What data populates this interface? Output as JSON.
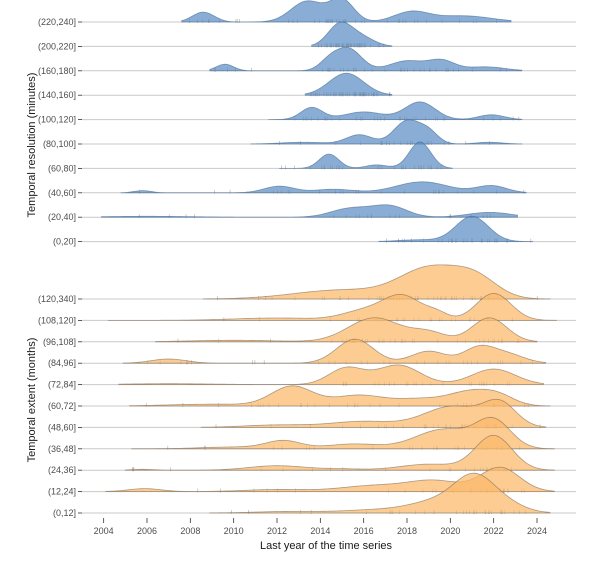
{
  "chart_data": {
    "type": "ridgeline",
    "xlabel": "Last year of the time series",
    "xlim": [
      2003,
      2025.8
    ],
    "xticks": [
      2004,
      2006,
      2008,
      2010,
      2012,
      2014,
      2016,
      2018,
      2020,
      2022,
      2024
    ],
    "panels": [
      {
        "name": "temporal-resolution",
        "ylabel": "Temporal resolution (minutes)",
        "color": "#5b8dc4",
        "rows": [
          {
            "label": "(220,240]",
            "range": [
              2007.6,
              2022.8
            ],
            "peaks": [
              [
                2008.6,
                0.45,
                0.5
              ],
              [
                2013.4,
                0.95,
                0.75
              ],
              [
                2015.0,
                1.0,
                0.55
              ],
              [
                2018.2,
                0.45,
                0.8
              ],
              [
                2020.6,
                0.28,
                1.3
              ]
            ]
          },
          {
            "label": "(200,220]",
            "range": [
              2013.6,
              2017.3
            ],
            "peaks": [
              [
                2014.9,
                1.0,
                0.55
              ],
              [
                2015.9,
                0.4,
                0.6
              ]
            ]
          },
          {
            "label": "(160,180]",
            "range": [
              2008.9,
              2023.3
            ],
            "peaks": [
              [
                2009.6,
                0.3,
                0.4
              ],
              [
                2014.4,
                0.4,
                0.45
              ],
              [
                2015.3,
                1.0,
                0.6
              ],
              [
                2018.0,
                0.45,
                0.8
              ],
              [
                2019.6,
                0.45,
                0.6
              ],
              [
                2021.6,
                0.18,
                0.9
              ]
            ]
          },
          {
            "label": "(140,160]",
            "range": [
              2013.3,
              2017.3
            ],
            "peaks": [
              [
                2015.2,
                1.0,
                0.8
              ]
            ]
          },
          {
            "label": "(100,120]",
            "range": [
              2011.6,
              2023.3
            ],
            "peaks": [
              [
                2013.6,
                0.55,
                0.5
              ],
              [
                2016.0,
                0.35,
                0.9
              ],
              [
                2018.6,
                0.8,
                0.7
              ],
              [
                2021.9,
                0.22,
                0.6
              ]
            ]
          },
          {
            "label": "(80,100]",
            "range": [
              2010.8,
              2023.3
            ],
            "peaks": [
              [
                2013.2,
                0.08,
                1.0
              ],
              [
                2015.8,
                0.42,
                0.6
              ],
              [
                2018.0,
                1.05,
                0.6
              ],
              [
                2019.0,
                0.5,
                0.45
              ],
              [
                2021.8,
                0.08,
                0.6
              ]
            ]
          },
          {
            "label": "(60,80]",
            "range": [
              2012.1,
              2020.1
            ],
            "peaks": [
              [
                2014.4,
                0.65,
                0.45
              ],
              [
                2016.6,
                0.16,
                0.5
              ],
              [
                2018.6,
                1.2,
                0.5
              ]
            ]
          },
          {
            "label": "(40,60]",
            "range": [
              2004.8,
              2023.5
            ],
            "peaks": [
              [
                2005.8,
                0.1,
                0.4
              ],
              [
                2012.1,
                0.3,
                0.7
              ],
              [
                2014.6,
                0.16,
                0.9
              ],
              [
                2018.7,
                0.5,
                1.2
              ],
              [
                2021.9,
                0.32,
                0.7
              ]
            ]
          },
          {
            "label": "(20,40]",
            "range": [
              2003.9,
              2023.1
            ],
            "peaks": [
              [
                2006.0,
                0.04,
                2.0
              ],
              [
                2015.4,
                0.4,
                0.9
              ],
              [
                2017.2,
                0.5,
                0.8
              ],
              [
                2021.8,
                0.22,
                1.0
              ]
            ]
          },
          {
            "label": "(0,20]",
            "range": [
              2016.7,
              2023.8
            ],
            "peaks": [
              [
                2018.5,
                0.08,
                0.9
              ],
              [
                2021.0,
                1.15,
                0.75
              ]
            ]
          }
        ]
      },
      {
        "name": "temporal-extent",
        "ylabel": "Temporal extent (months)",
        "color": "#fbb868",
        "rows": [
          {
            "label": "(120,340]",
            "range": [
              2008.6,
              2024.6
            ],
            "peaks": [
              [
                2015.0,
                0.3,
                2.2
              ],
              [
                2019.1,
                1.0,
                1.4
              ],
              [
                2021.2,
                0.6,
                1.0
              ]
            ]
          },
          {
            "label": "(108,120]",
            "range": [
              2004.2,
              2024.9
            ],
            "peaks": [
              [
                2012.0,
                0.08,
                2.0
              ],
              [
                2016.0,
                0.3,
                1.0
              ],
              [
                2017.8,
                0.8,
                0.9
              ],
              [
                2019.4,
                0.2,
                0.5
              ],
              [
                2022.0,
                0.9,
                0.8
              ]
            ]
          },
          {
            "label": "(96,108]",
            "range": [
              2006.4,
              2024.0
            ],
            "peaks": [
              [
                2010.0,
                0.05,
                2.0
              ],
              [
                2016.5,
                0.8,
                1.2
              ],
              [
                2019.0,
                0.3,
                0.8
              ],
              [
                2021.8,
                0.8,
                0.8
              ]
            ]
          },
          {
            "label": "(84,96]",
            "range": [
              2004.9,
              2024.4
            ],
            "peaks": [
              [
                2007.0,
                0.14,
                0.8
              ],
              [
                2015.6,
                0.8,
                0.85
              ],
              [
                2019.0,
                0.4,
                0.8
              ],
              [
                2021.3,
                0.5,
                0.7
              ],
              [
                2022.6,
                0.3,
                0.8
              ]
            ]
          },
          {
            "label": "(72,84]",
            "range": [
              2004.7,
              2024.3
            ],
            "peaks": [
              [
                2007.0,
                0.03,
                2.0
              ],
              [
                2015.2,
                0.55,
                0.8
              ],
              [
                2017.6,
                0.65,
                1.0
              ],
              [
                2022.0,
                0.52,
                1.0
              ]
            ]
          },
          {
            "label": "(60,72]",
            "range": [
              2005.2,
              2024.6
            ],
            "peaks": [
              [
                2009.0,
                0.06,
                2.0
              ],
              [
                2012.7,
                0.65,
                0.95
              ],
              [
                2015.8,
                0.36,
                1.2
              ],
              [
                2018.5,
                0.2,
                1.0
              ],
              [
                2021.0,
                0.5,
                1.1
              ],
              [
                2022.3,
                0.2,
                0.7
              ]
            ]
          },
          {
            "label": "(48,60]",
            "range": [
              2008.5,
              2024.4
            ],
            "peaks": [
              [
                2012.0,
                0.08,
                1.5
              ],
              [
                2016.0,
                0.2,
                1.5
              ],
              [
                2020.1,
                0.7,
                1.3
              ],
              [
                2022.3,
                0.75,
                0.75
              ]
            ]
          },
          {
            "label": "(36,48]",
            "range": [
              2005.3,
              2024.8
            ],
            "peaks": [
              [
                2010.0,
                0.06,
                1.5
              ],
              [
                2012.3,
                0.26,
                0.8
              ],
              [
                2015.5,
                0.16,
                1.2
              ],
              [
                2019.7,
                0.65,
                1.3
              ],
              [
                2022.0,
                0.9,
                0.8
              ]
            ]
          },
          {
            "label": "(24,36]",
            "range": [
              2005.0,
              2024.8
            ],
            "peaks": [
              [
                2005.8,
                0.03,
                0.5
              ],
              [
                2012.0,
                0.15,
                1.3
              ],
              [
                2015.0,
                0.04,
                1.0
              ],
              [
                2019.0,
                0.2,
                1.3
              ],
              [
                2022.0,
                1.15,
                0.85
              ]
            ]
          },
          {
            "label": "(12,24]",
            "range": [
              2004.1,
              2024.8
            ],
            "peaks": [
              [
                2005.9,
                0.1,
                0.75
              ],
              [
                2012.0,
                0.07,
                1.5
              ],
              [
                2016.5,
                0.2,
                1.5
              ],
              [
                2019.3,
                0.35,
                1.2
              ],
              [
                2022.3,
                0.8,
                0.9
              ]
            ]
          },
          {
            "label": "(0,12]",
            "range": [
              2008.9,
              2024.6
            ],
            "peaks": [
              [
                2012.5,
                0.05,
                1.5
              ],
              [
                2016.5,
                0.1,
                1.5
              ],
              [
                2019.5,
                0.4,
                1.3
              ],
              [
                2021.1,
                1.05,
                0.9
              ],
              [
                2022.5,
                0.3,
                0.9
              ]
            ]
          }
        ]
      }
    ]
  }
}
